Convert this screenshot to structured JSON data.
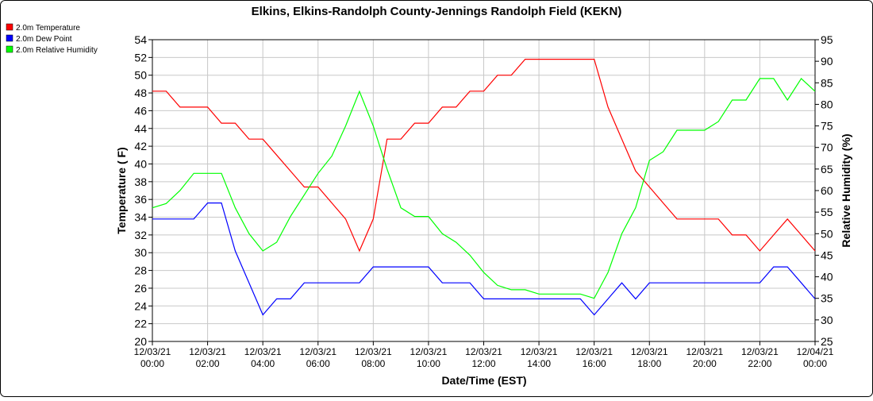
{
  "chart_data": {
    "type": "line",
    "title": "Elkins, Elkins-Randolph County-Jennings Randolph Field (KEKN)",
    "x_label": "Date/Time (EST)",
    "y_label": "Temperature ( F)",
    "y2_label": "Relative Humidity (%)",
    "x": [
      "12/03/21 00:00",
      "12/03/21 00:30",
      "12/03/21 01:00",
      "12/03/21 01:30",
      "12/03/21 02:00",
      "12/03/21 02:30",
      "12/03/21 03:00",
      "12/03/21 03:30",
      "12/03/21 04:00",
      "12/03/21 04:30",
      "12/03/21 05:00",
      "12/03/21 05:30",
      "12/03/21 06:00",
      "12/03/21 06:30",
      "12/03/21 07:00",
      "12/03/21 07:30",
      "12/03/21 08:00",
      "12/03/21 08:30",
      "12/03/21 09:00",
      "12/03/21 09:30",
      "12/03/21 10:00",
      "12/03/21 10:30",
      "12/03/21 11:00",
      "12/03/21 11:30",
      "12/03/21 12:00",
      "12/03/21 12:30",
      "12/03/21 13:00",
      "12/03/21 13:30",
      "12/03/21 14:00",
      "12/03/21 14:30",
      "12/03/21 15:00",
      "12/03/21 15:30",
      "12/03/21 16:00",
      "12/03/21 16:30",
      "12/03/21 17:00",
      "12/03/21 17:30",
      "12/03/21 18:00",
      "12/03/21 18:30",
      "12/03/21 19:00",
      "12/03/21 19:30",
      "12/03/21 20:00",
      "12/03/21 20:30",
      "12/03/21 21:00",
      "12/03/21 21:30",
      "12/03/21 22:00",
      "12/03/21 22:30",
      "12/03/21 23:00",
      "12/03/21 23:30",
      "12/04/21 00:00"
    ],
    "series": [
      {
        "name": "2.0m Temperature",
        "color": "#ff0000",
        "axis": "y",
        "values": [
          48.2,
          48.2,
          46.4,
          46.4,
          46.4,
          44.6,
          44.6,
          42.8,
          42.8,
          41,
          39.2,
          37.4,
          37.4,
          35.6,
          33.8,
          30.2,
          33.8,
          42.8,
          42.8,
          44.6,
          44.6,
          46.4,
          46.4,
          48.2,
          48.2,
          50,
          50,
          51.8,
          51.8,
          51.8,
          51.8,
          51.8,
          51.8,
          46.4,
          42.8,
          39.2,
          37.4,
          35.6,
          33.8,
          33.8,
          33.8,
          33.8,
          32,
          32,
          30.2,
          32,
          33.8,
          32,
          30.2
        ]
      },
      {
        "name": "2.0m Dew Point",
        "color": "#0000ff",
        "axis": "y",
        "values": [
          33.8,
          33.8,
          33.8,
          33.8,
          35.6,
          35.6,
          30.2,
          26.6,
          23,
          24.8,
          24.8,
          26.6,
          26.6,
          26.6,
          26.6,
          26.6,
          28.4,
          28.4,
          28.4,
          28.4,
          28.4,
          26.6,
          26.6,
          26.6,
          24.8,
          24.8,
          24.8,
          24.8,
          24.8,
          24.8,
          24.8,
          24.8,
          23,
          24.8,
          26.6,
          24.8,
          26.6,
          26.6,
          26.6,
          26.6,
          26.6,
          26.6,
          26.6,
          26.6,
          26.6,
          28.4,
          28.4,
          26.6,
          24.8
        ]
      },
      {
        "name": "2.0m Relative Humidity",
        "color": "#00ff00",
        "axis": "y2",
        "values": [
          56,
          57,
          60,
          64,
          64,
          64,
          56,
          50,
          46,
          48,
          54,
          59,
          64,
          68,
          75,
          83,
          75,
          65,
          56,
          54,
          54,
          50,
          48,
          45,
          41,
          38,
          37,
          37,
          36,
          36,
          36,
          36,
          35,
          41,
          50,
          56,
          67,
          69,
          74,
          74,
          74,
          76,
          81,
          81,
          86,
          86,
          81,
          86,
          83
        ]
      }
    ],
    "xlim": [
      "12/03/21 00:00",
      "12/04/21 00:00"
    ],
    "xticks": [
      "12/03/21 00:00",
      "12/03/21 02:00",
      "12/03/21 04:00",
      "12/03/21 06:00",
      "12/03/21 08:00",
      "12/03/21 10:00",
      "12/03/21 12:00",
      "12/03/21 14:00",
      "12/03/21 16:00",
      "12/03/21 18:00",
      "12/03/21 20:00",
      "12/03/21 22:00",
      "12/04/21 00:00"
    ],
    "ylim": [
      20,
      54
    ],
    "yticks": [
      20,
      22,
      24,
      26,
      28,
      30,
      32,
      34,
      36,
      38,
      40,
      42,
      44,
      46,
      48,
      50,
      52,
      54
    ],
    "y2lim": [
      25,
      95
    ],
    "y2ticks": [
      25,
      30,
      35,
      40,
      45,
      50,
      55,
      60,
      65,
      70,
      75,
      80,
      85,
      90,
      95
    ],
    "grid": true,
    "legend": "top-left"
  }
}
